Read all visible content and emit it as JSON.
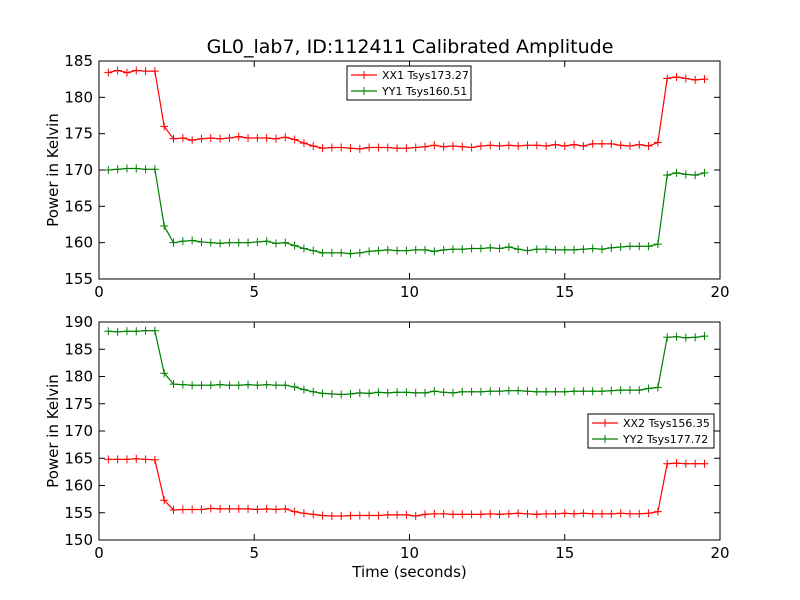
{
  "title": "GL0_lab7, ID:112411 Calibrated Amplitude",
  "chart_data": [
    {
      "type": "line",
      "xlabel": "",
      "ylabel": "Power in Kelvin",
      "xlim": [
        0,
        20
      ],
      "ylim": [
        155,
        185
      ],
      "xticks": [
        "0",
        "5",
        "10",
        "15",
        "20"
      ],
      "yticks": [
        "155",
        "160",
        "165",
        "170",
        "175",
        "180",
        "185"
      ],
      "legend_position": "top-center",
      "grid": false,
      "x": [
        0.3,
        0.6,
        0.9,
        1.2,
        1.5,
        1.8,
        2.1,
        2.4,
        2.7,
        3.0,
        3.3,
        3.6,
        3.9,
        4.2,
        4.5,
        4.8,
        5.1,
        5.4,
        5.7,
        6.0,
        6.3,
        6.6,
        6.9,
        7.2,
        7.5,
        7.8,
        8.1,
        8.4,
        8.7,
        9.0,
        9.3,
        9.6,
        9.9,
        10.2,
        10.5,
        10.8,
        11.1,
        11.4,
        11.7,
        12.0,
        12.3,
        12.6,
        12.9,
        13.2,
        13.5,
        13.8,
        14.1,
        14.4,
        14.7,
        15.0,
        15.3,
        15.6,
        15.9,
        16.2,
        16.5,
        16.8,
        17.1,
        17.4,
        17.7,
        18.0,
        18.3,
        18.6,
        18.9,
        19.2,
        19.5
      ],
      "series": [
        {
          "name": "XX1 Tsys173.27",
          "color": "#ff0000",
          "values": [
            183.4,
            183.7,
            183.4,
            183.7,
            183.6,
            183.6,
            176.0,
            174.3,
            174.4,
            174.1,
            174.3,
            174.4,
            174.3,
            174.4,
            174.6,
            174.4,
            174.4,
            174.4,
            174.3,
            174.5,
            174.2,
            173.7,
            173.3,
            173.0,
            173.1,
            173.1,
            173.0,
            172.9,
            173.1,
            173.1,
            173.1,
            173.0,
            173.0,
            173.1,
            173.2,
            173.4,
            173.2,
            173.3,
            173.2,
            173.1,
            173.3,
            173.4,
            173.3,
            173.4,
            173.3,
            173.4,
            173.4,
            173.3,
            173.5,
            173.3,
            173.5,
            173.3,
            173.6,
            173.6,
            173.6,
            173.4,
            173.3,
            173.5,
            173.3,
            173.8,
            182.6,
            182.8,
            182.6,
            182.4,
            182.5
          ]
        },
        {
          "name": "YY1 Tsys160.51",
          "color": "#008000",
          "values": [
            170.0,
            170.1,
            170.2,
            170.2,
            170.1,
            170.1,
            162.3,
            160.0,
            160.2,
            160.3,
            160.1,
            160.0,
            159.9,
            160.0,
            160.0,
            160.0,
            160.1,
            160.2,
            159.9,
            160.0,
            159.6,
            159.2,
            158.9,
            158.6,
            158.6,
            158.6,
            158.5,
            158.6,
            158.8,
            158.9,
            159.0,
            158.9,
            158.9,
            159.0,
            159.0,
            158.8,
            159.0,
            159.1,
            159.1,
            159.2,
            159.2,
            159.3,
            159.2,
            159.4,
            159.1,
            158.9,
            159.1,
            159.1,
            159.0,
            159.0,
            159.0,
            159.1,
            159.2,
            159.1,
            159.3,
            159.4,
            159.5,
            159.5,
            159.5,
            159.8,
            169.3,
            169.6,
            169.4,
            169.3,
            169.6
          ]
        }
      ]
    },
    {
      "type": "line",
      "xlabel": "Time (seconds)",
      "ylabel": "Power in Kelvin",
      "xlim": [
        0,
        20
      ],
      "ylim": [
        150,
        190
      ],
      "xticks": [
        "0",
        "5",
        "10",
        "15",
        "20"
      ],
      "yticks": [
        "150",
        "155",
        "160",
        "165",
        "170",
        "175",
        "180",
        "185",
        "190"
      ],
      "legend_position": "center-right",
      "grid": false,
      "x": [
        0.3,
        0.6,
        0.9,
        1.2,
        1.5,
        1.8,
        2.1,
        2.4,
        2.7,
        3.0,
        3.3,
        3.6,
        3.9,
        4.2,
        4.5,
        4.8,
        5.1,
        5.4,
        5.7,
        6.0,
        6.3,
        6.6,
        6.9,
        7.2,
        7.5,
        7.8,
        8.1,
        8.4,
        8.7,
        9.0,
        9.3,
        9.6,
        9.9,
        10.2,
        10.5,
        10.8,
        11.1,
        11.4,
        11.7,
        12.0,
        12.3,
        12.6,
        12.9,
        13.2,
        13.5,
        13.8,
        14.1,
        14.4,
        14.7,
        15.0,
        15.3,
        15.6,
        15.9,
        16.2,
        16.5,
        16.8,
        17.1,
        17.4,
        17.7,
        18.0,
        18.3,
        18.6,
        18.9,
        19.2,
        19.5
      ],
      "series": [
        {
          "name": "XX2 Tsys156.35",
          "color": "#ff0000",
          "values": [
            164.8,
            164.8,
            164.8,
            164.9,
            164.8,
            164.7,
            157.3,
            155.5,
            155.6,
            155.6,
            155.6,
            155.8,
            155.7,
            155.7,
            155.7,
            155.7,
            155.6,
            155.7,
            155.6,
            155.7,
            155.2,
            154.9,
            154.7,
            154.5,
            154.4,
            154.4,
            154.5,
            154.5,
            154.5,
            154.5,
            154.6,
            154.6,
            154.6,
            154.4,
            154.7,
            154.8,
            154.8,
            154.7,
            154.7,
            154.7,
            154.7,
            154.8,
            154.7,
            154.8,
            154.9,
            154.8,
            154.7,
            154.8,
            154.8,
            154.9,
            154.8,
            154.9,
            154.8,
            154.8,
            154.8,
            154.9,
            154.8,
            154.8,
            154.9,
            155.2,
            164.0,
            164.1,
            164.0,
            164.0,
            164.0
          ]
        },
        {
          "name": "YY2 Tsys177.72",
          "color": "#008000",
          "values": [
            188.3,
            188.2,
            188.3,
            188.3,
            188.4,
            188.4,
            180.6,
            178.6,
            178.5,
            178.4,
            178.4,
            178.4,
            178.5,
            178.4,
            178.4,
            178.5,
            178.4,
            178.5,
            178.4,
            178.4,
            178.1,
            177.6,
            177.2,
            176.9,
            176.8,
            176.7,
            176.8,
            177.0,
            176.9,
            177.1,
            177.0,
            177.1,
            177.1,
            177.0,
            177.0,
            177.3,
            177.1,
            177.0,
            177.2,
            177.2,
            177.2,
            177.3,
            177.3,
            177.4,
            177.4,
            177.3,
            177.2,
            177.2,
            177.2,
            177.2,
            177.3,
            177.3,
            177.3,
            177.3,
            177.4,
            177.5,
            177.5,
            177.5,
            177.8,
            178.0,
            187.2,
            187.3,
            187.1,
            187.2,
            187.4
          ]
        }
      ]
    }
  ]
}
